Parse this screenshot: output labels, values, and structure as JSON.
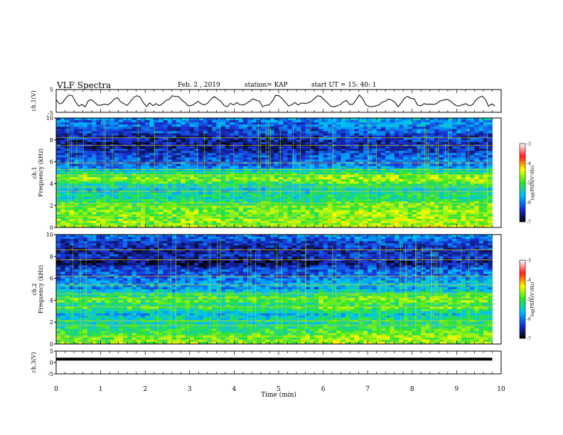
{
  "header": {
    "title": "VLF Spectra",
    "date": "Feb. 2 , 2019",
    "station": "station= KAP",
    "start": "start  UT =   15: 40: 1"
  },
  "chart_data": [
    {
      "type": "line",
      "panel": "ch1-waveform",
      "ylabel": "ch.1(V)",
      "ylim": [
        -5,
        5
      ],
      "yticks": [
        "5",
        "-5"
      ],
      "xlim": [
        0,
        10
      ],
      "x_step_min": 0.0725,
      "values": [
        0.6,
        -1.3,
        -0.8,
        1.3,
        2.6,
        2.3,
        -0.4,
        -2.3,
        -1.5,
        -2.6,
        0.2,
        0.5,
        -0.7,
        -2,
        -1.8,
        -1.4,
        -1.7,
        -0.8,
        0.8,
        1.4,
        -0.4,
        -1.2,
        -2,
        -0.3,
        1.5,
        2.3,
        1.7,
        -0.7,
        -2.5,
        -0.8,
        -2.1,
        -1.2,
        -2.1,
        -1.2,
        0.3,
        0.6,
        2.3,
        1.9,
        1.9,
        0.3,
        -0.8,
        -2.2,
        -2,
        -1.2,
        -0.2,
        -1.3,
        -1.7,
        -0.9,
        0.8,
        1.9,
        0.9,
        -0.1,
        -1.9,
        -2.6,
        -1,
        -1.8,
        -0.7,
        -1.7,
        -1.8,
        -1.1,
        -0.1,
        0.9,
        0.3,
        -0.1,
        -2.5,
        -1.9,
        -1.8,
        -0.1,
        2.4,
        2.3,
        1.1,
        -0.5,
        -2.2,
        -1.7,
        -0.7,
        -1.8,
        -0.9,
        -1.1,
        -0.9,
        -0.3,
        1,
        2.3,
        2,
        0.6,
        -0.7,
        -2.2,
        -2.6,
        -2.2,
        -1.7,
        -0.4,
        0.2,
        -1.6,
        -1.4,
        0.6,
        2.6,
        1,
        -1.6,
        -2.5,
        -2.5,
        -2.2,
        -1.8,
        -0.6,
        -0.1,
        0.8,
        0.4,
        -0.6,
        -2.6,
        -0.8,
        1.3,
        2,
        1.1,
        0.9,
        -1.8,
        -2.2,
        -1.2,
        -1.5,
        -1.4,
        -1.6,
        -1.1,
        0,
        0.3,
        0.7,
        0.2,
        -1.1,
        -2.1,
        -2.2,
        -1.6,
        -1.2,
        -2.1,
        -1.7,
        0.2,
        1.5,
        2.1,
        0.8,
        -2.3,
        -1.3,
        -2.2
      ]
    },
    {
      "type": "heatmap",
      "panel": "ch1-spectrogram",
      "ylabel": "ch.1 Frequency (kHz)",
      "ylim": [
        0,
        10
      ],
      "yticks": [
        "0",
        "2",
        "4",
        "6",
        "8",
        "10"
      ],
      "xlim": [
        0,
        10
      ],
      "data_extent_min": 9.8,
      "colorbar": {
        "label": "log(PSD)(V²/Hz)",
        "range": [
          -7,
          -3
        ],
        "ticks": [
          "-3",
          "-4",
          "-5",
          "-6",
          "-7"
        ],
        "colors": [
          "#000000",
          "#1a2fd6",
          "#00bfff",
          "#2ee62e",
          "#ffff00",
          "#ff1e1e",
          "#ffffff"
        ]
      },
      "profile_freq_khz": [
        0,
        0.3,
        0.6,
        0.9,
        1.2,
        1.5,
        1.8,
        2.1,
        2.4,
        2.7,
        3,
        3.3,
        3.6,
        3.9,
        4.2,
        4.5,
        4.8,
        5.1,
        5.4,
        5.7,
        6,
        6.3,
        6.6,
        6.9,
        7.2,
        7.5,
        7.8,
        8.1,
        8.4,
        8.7,
        9,
        9.3,
        9.6,
        9.9
      ],
      "profile_log_psd": [
        -4.6,
        -4.8,
        -4.7,
        -4.9,
        -4.8,
        -4.8,
        -4.9,
        -5,
        -5.2,
        -5.4,
        -5.3,
        -5.6,
        -5.5,
        -5.3,
        -4.9,
        -4.8,
        -5,
        -5.4,
        -5.8,
        -6.1,
        -6.1,
        -6.2,
        -6.3,
        -6.4,
        -6.5,
        -6.6,
        -6.6,
        -6.4,
        -6.5,
        -6.2,
        -6.3,
        -6.0,
        -6.1,
        -5.9
      ],
      "spectral_lines_khz": [
        0.2,
        0.6,
        1.0,
        1.9,
        2.2,
        3.3,
        3.7,
        4.4,
        4.8,
        5.3,
        5.9,
        7.5,
        8.2
      ]
    },
    {
      "type": "heatmap",
      "panel": "ch2-spectrogram",
      "ylabel": "ch.2 Frequency (kHz)",
      "ylim": [
        0,
        10
      ],
      "yticks": [
        "0",
        "2",
        "4",
        "6",
        "8",
        "10"
      ],
      "xlim": [
        0,
        10
      ],
      "data_extent_min": 9.8,
      "colorbar": {
        "label": "log(PSD)(V²/Hz)",
        "range": [
          -7,
          -3
        ],
        "ticks": [
          "-3",
          "-4",
          "-5",
          "-6",
          "-7"
        ],
        "colors": [
          "#000000",
          "#1a2fd6",
          "#00bfff",
          "#2ee62e",
          "#ffff00",
          "#ff1e1e",
          "#ffffff"
        ]
      },
      "profile_freq_khz": [
        0,
        0.3,
        0.6,
        0.9,
        1.2,
        1.5,
        1.8,
        2.1,
        2.4,
        2.7,
        3,
        3.3,
        3.6,
        3.9,
        4.2,
        4.5,
        4.8,
        5.1,
        5.4,
        5.7,
        6,
        6.3,
        6.6,
        6.9,
        7.2,
        7.5,
        7.8,
        8.1,
        8.4,
        8.7,
        9,
        9.3,
        9.6,
        9.9
      ],
      "profile_log_psd": [
        -4.7,
        -4.9,
        -4.8,
        -5.0,
        -5.1,
        -5.2,
        -5.4,
        -5.3,
        -5.5,
        -5.7,
        -5.4,
        -5.0,
        -5.3,
        -4.9,
        -5.0,
        -5.2,
        -5.6,
        -5.9,
        -5.7,
        -5.9,
        -6.0,
        -6.2,
        -6.1,
        -6.3,
        -6.6,
        -6.7,
        -6.5,
        -6.4,
        -6.6,
        -6.5,
        -6.4,
        -6.4,
        -6.2,
        -6.0
      ],
      "spectral_lines_khz": [
        0.3,
        0.7,
        1.7,
        2.1,
        3.4,
        4.2,
        4.6,
        5.4,
        6.2,
        7.7,
        8.6
      ]
    },
    {
      "type": "line",
      "panel": "ch3-waveform",
      "ylabel": "ch.3(V)",
      "ylim": [
        -5,
        5
      ],
      "yticks": [
        "5",
        "0",
        "-5"
      ],
      "xlim": [
        0,
        10
      ],
      "x": [
        0,
        9.8
      ],
      "y": [
        1.5,
        1.5
      ]
    }
  ],
  "xaxis": {
    "label": "Time  (min)",
    "ticks": [
      "0",
      "1",
      "2",
      "3",
      "4",
      "5",
      "6",
      "7",
      "8",
      "9",
      "10"
    ]
  }
}
